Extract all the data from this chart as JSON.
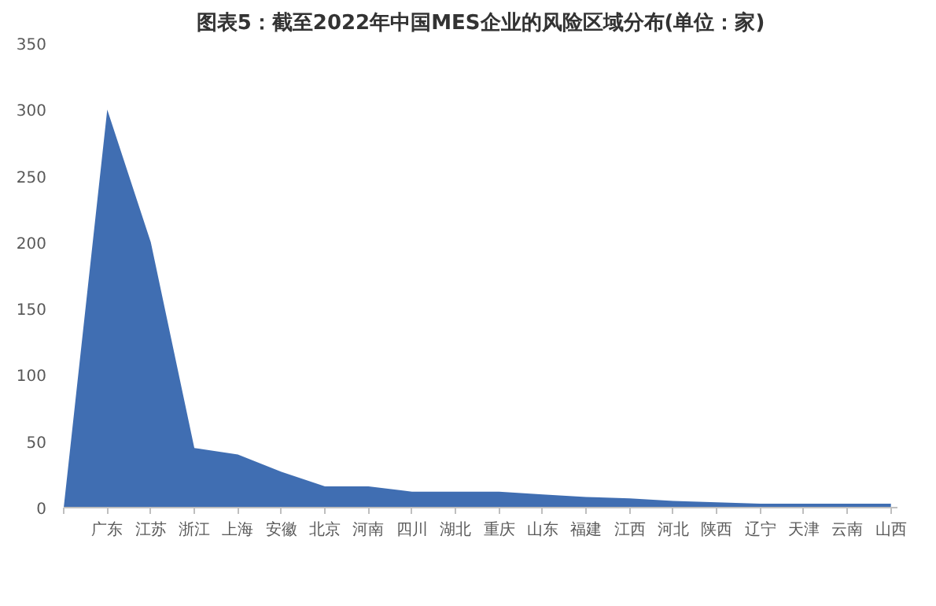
{
  "chart_data": {
    "type": "area",
    "title": "图表5：截至2022年中国MES企业的风险区域分布(单位：家)",
    "categories": [
      null,
      "广东",
      "江苏",
      "浙江",
      "上海",
      "安徽",
      "北京",
      "河南",
      "四川",
      "湖北",
      "重庆",
      "山东",
      "福建",
      "江西",
      "河北",
      "陕西",
      "辽宁",
      "天津",
      "云南",
      "山西"
    ],
    "series": [
      {
        "color": "#1e55a5",
        "values": [
          0,
          300,
          200,
          45,
          40,
          27,
          16,
          16,
          12,
          12,
          12,
          10,
          8,
          7,
          5,
          4,
          3,
          3,
          3,
          3
        ]
      }
    ],
    "ylim": [
      0,
      350
    ],
    "yticks": [
      0,
      50,
      100,
      150,
      200,
      250,
      300,
      350
    ],
    "grid": false
  }
}
